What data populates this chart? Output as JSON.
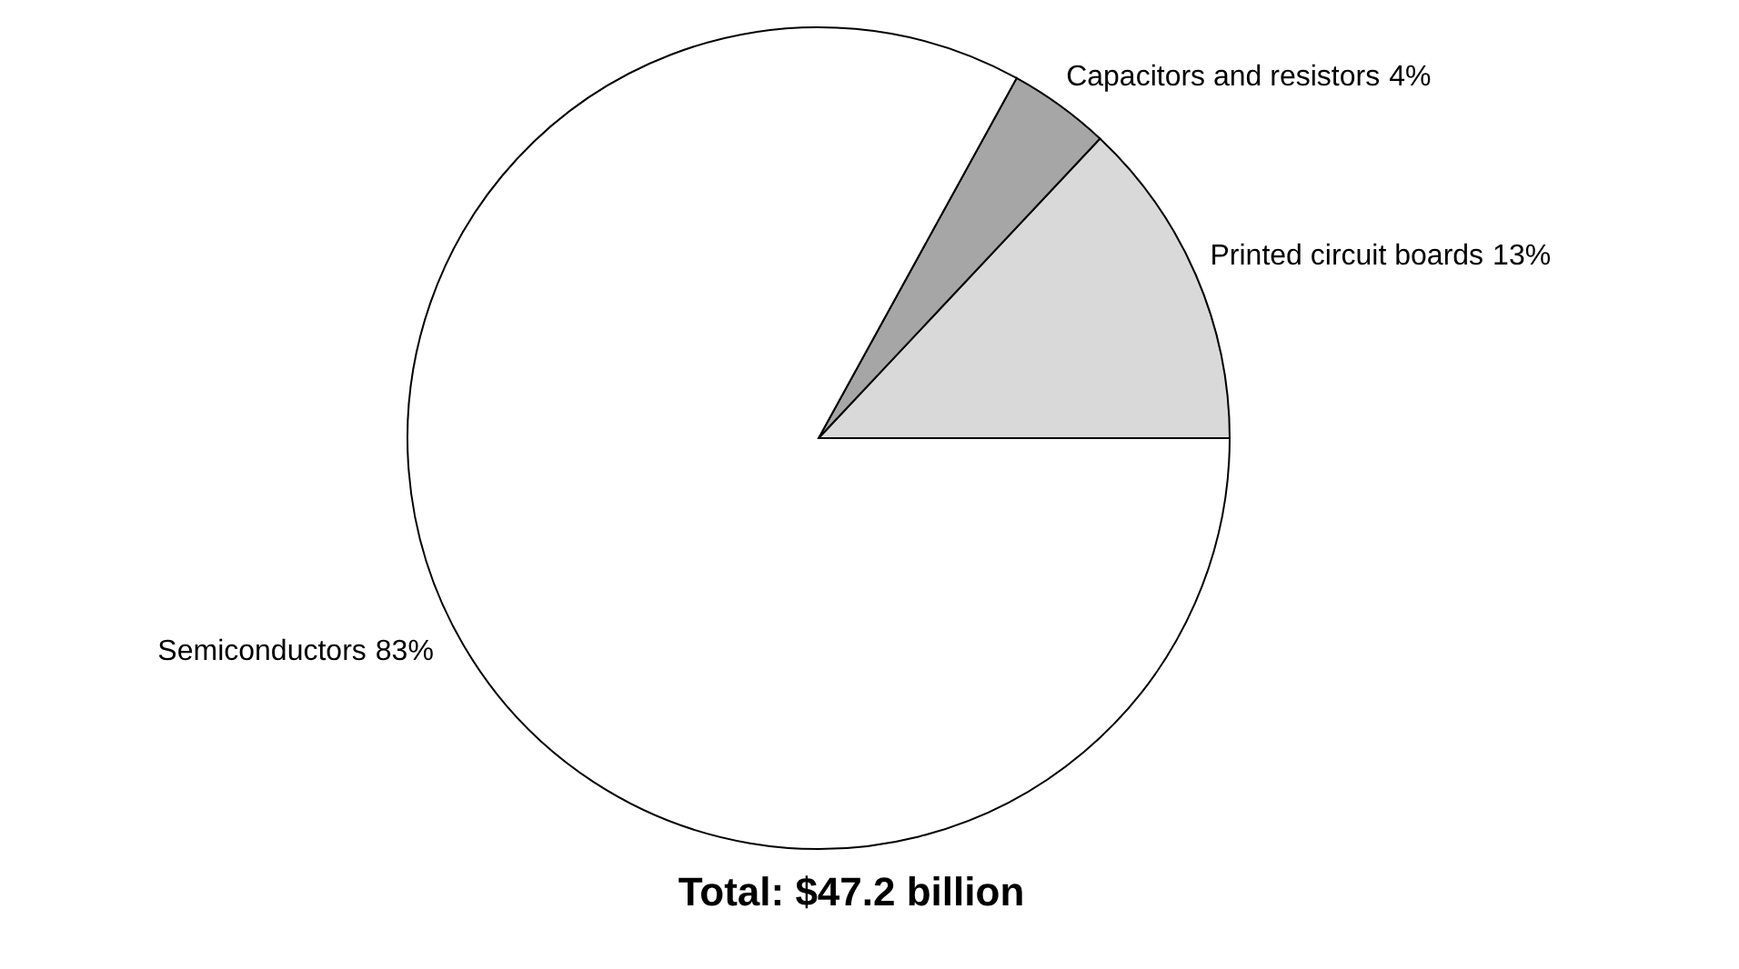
{
  "chart_data": {
    "type": "pie",
    "title": "Total: $47.2 billion",
    "categories": [
      "Printed circuit boards",
      "Capacitors and resistors",
      "Semiconductors"
    ],
    "values": [
      13,
      4,
      83
    ],
    "colors": [
      "#d9d9d9",
      "#a6a6a6",
      "#ffffff"
    ],
    "value_labels": [
      "13%",
      "4%",
      "83%"
    ]
  }
}
